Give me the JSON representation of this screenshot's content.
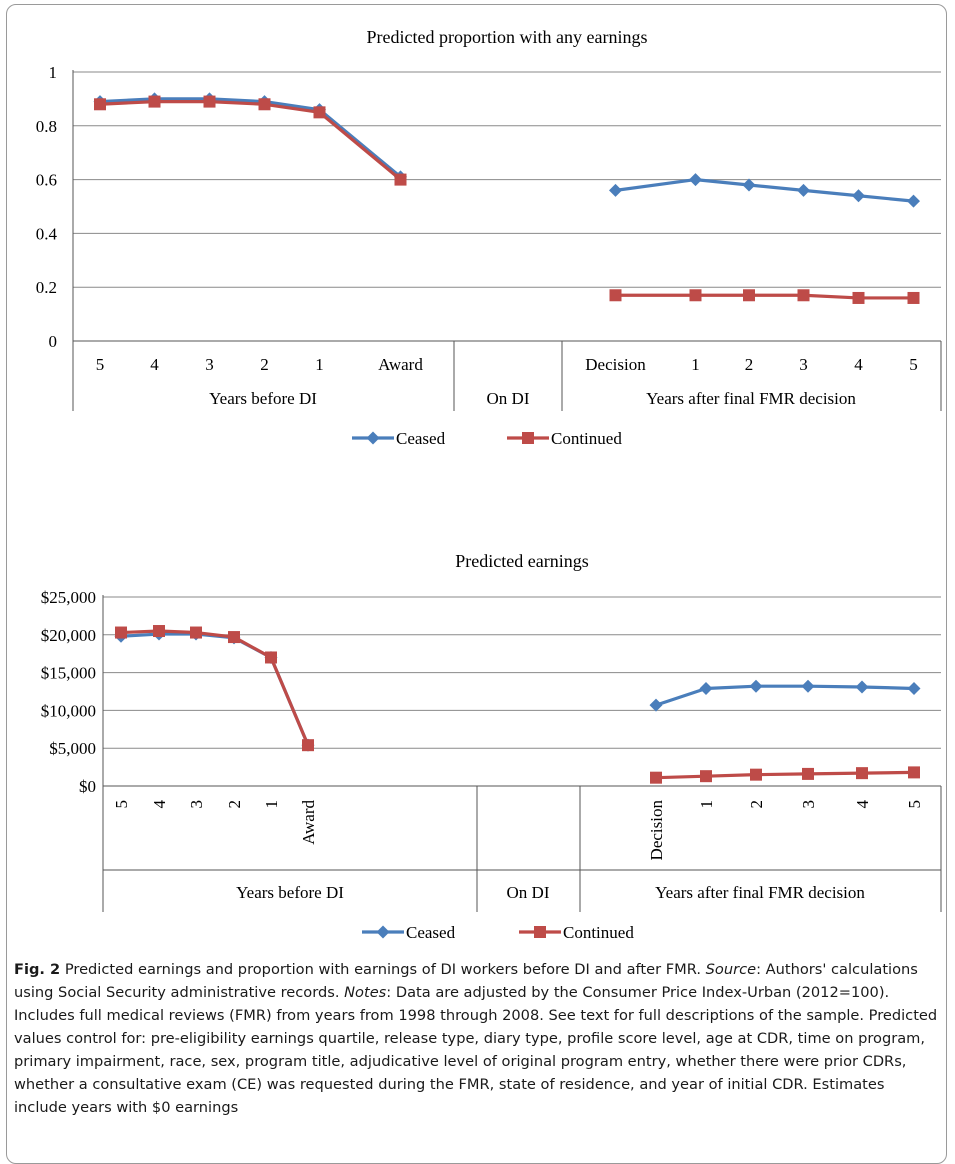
{
  "chart_data": [
    {
      "type": "line",
      "title": "Predicted proportion with any earnings",
      "categories": [
        "5",
        "4",
        "3",
        "2",
        "1",
        "Award",
        "",
        "Decision",
        "1",
        "2",
        "3",
        "4",
        "5"
      ],
      "groups": [
        "Years before DI",
        "On DI",
        "Years after final FMR decision"
      ],
      "ylim": [
        0,
        1
      ],
      "yticks": [
        "0",
        "0.2",
        "0.4",
        "0.6",
        "0.8",
        "1"
      ],
      "grid": true,
      "legend_position": "bottom",
      "series": [
        {
          "name": "Ceased",
          "color": "#4a7ebb",
          "marker": "diamond",
          "values": [
            0.89,
            0.9,
            0.9,
            0.89,
            0.86,
            0.61,
            null,
            0.56,
            0.6,
            0.58,
            0.56,
            0.54,
            0.52
          ]
        },
        {
          "name": "Continued",
          "color": "#be4b48",
          "marker": "square",
          "values": [
            0.88,
            0.89,
            0.89,
            0.88,
            0.85,
            0.6,
            null,
            0.17,
            0.17,
            0.17,
            0.17,
            0.16,
            0.16
          ]
        }
      ]
    },
    {
      "type": "line",
      "title": "Predicted earnings",
      "categories": [
        "5",
        "4",
        "3",
        "2",
        "1",
        "Award",
        "",
        "Decision",
        "1",
        "2",
        "3",
        "4",
        "5"
      ],
      "groups": [
        "Years before DI",
        "On DI",
        "Years after final FMR decision"
      ],
      "ylim": [
        0,
        25000
      ],
      "yticks": [
        "$0",
        "$5,000",
        "$10,000",
        "$15,000",
        "$20,000",
        "$25,000"
      ],
      "grid": true,
      "legend_position": "bottom",
      "series": [
        {
          "name": "Ceased",
          "color": "#4a7ebb",
          "marker": "diamond",
          "values": [
            19800,
            20100,
            20100,
            19600,
            17000,
            5400,
            null,
            10700,
            12900,
            13200,
            13200,
            13100,
            12900
          ]
        },
        {
          "name": "Continued",
          "color": "#be4b48",
          "marker": "square",
          "values": [
            20300,
            20500,
            20300,
            19700,
            17000,
            5400,
            null,
            1100,
            1300,
            1500,
            1600,
            1700,
            1800
          ]
        }
      ]
    }
  ],
  "caption": {
    "fig_label": "Fig. 2",
    "text_1": " Predicted earnings and proportion with earnings of DI workers before DI and after FMR. ",
    "source_label": "Source",
    "text_2": ": Authors' calculations using Social Security administrative records. ",
    "notes_label": "Notes",
    "text_3": ": Data are adjusted by the Consumer Price Index-Urban (2012=100). Includes full medical reviews (FMR) from years from 1998 through 2008. See text for full descriptions of the sample. Predicted values control for: pre-eligibility earnings quartile, release type, diary type, profile score level, age at CDR, time on program, primary impairment, race, sex, program title, adjudicative level of original program entry, whether there were prior CDRs, whether a consultative exam (CE) was requested during the FMR, state of residence, and year of initial CDR. Estimates include years with $0 earnings"
  }
}
